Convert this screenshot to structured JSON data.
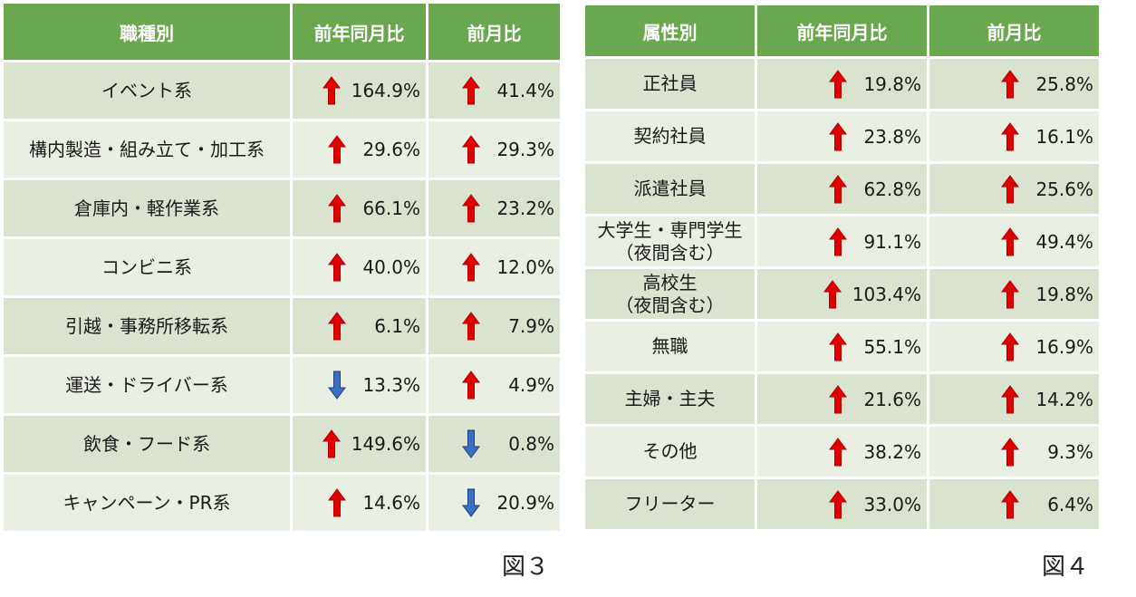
{
  "chart_data": [
    {
      "type": "table",
      "headers": [
        "職種別",
        "前年同月比",
        "前月比"
      ],
      "rows": [
        {
          "name": "イベント系",
          "yoy": {
            "dir": "up",
            "value": "164.9%"
          },
          "mom": {
            "dir": "up",
            "value": "41.4%"
          }
        },
        {
          "name": "構内製造・組み立て・加工系",
          "yoy": {
            "dir": "up",
            "value": "29.6%"
          },
          "mom": {
            "dir": "up",
            "value": "29.3%"
          }
        },
        {
          "name": "倉庫内・軽作業系",
          "yoy": {
            "dir": "up",
            "value": "66.1%"
          },
          "mom": {
            "dir": "up",
            "value": "23.2%"
          }
        },
        {
          "name": "コンビニ系",
          "yoy": {
            "dir": "up",
            "value": "40.0%"
          },
          "mom": {
            "dir": "up",
            "value": "12.0%"
          }
        },
        {
          "name": "引越・事務所移転系",
          "yoy": {
            "dir": "up",
            "value": "6.1%"
          },
          "mom": {
            "dir": "up",
            "value": "7.9%"
          }
        },
        {
          "name": "運送・ドライバー系",
          "yoy": {
            "dir": "down",
            "value": "13.3%"
          },
          "mom": {
            "dir": "up",
            "value": "4.9%"
          }
        },
        {
          "name": "飲食・フード系",
          "yoy": {
            "dir": "up",
            "value": "149.6%"
          },
          "mom": {
            "dir": "down",
            "value": "0.8%"
          }
        },
        {
          "name": "キャンペーン・PR系",
          "yoy": {
            "dir": "up",
            "value": "14.6%"
          },
          "mom": {
            "dir": "down",
            "value": "20.9%"
          }
        }
      ],
      "caption": "図３"
    },
    {
      "type": "table",
      "headers": [
        "属性別",
        "前年同月比",
        "前月比"
      ],
      "rows": [
        {
          "name": "正社員",
          "yoy": {
            "dir": "up",
            "value": "19.8%"
          },
          "mom": {
            "dir": "up",
            "value": "25.8%"
          }
        },
        {
          "name": "契約社員",
          "yoy": {
            "dir": "up",
            "value": "23.8%"
          },
          "mom": {
            "dir": "up",
            "value": "16.1%"
          }
        },
        {
          "name": "派遣社員",
          "yoy": {
            "dir": "up",
            "value": "62.8%"
          },
          "mom": {
            "dir": "up",
            "value": "25.6%"
          }
        },
        {
          "name": "大学生・専門学生\n（夜間含む）",
          "yoy": {
            "dir": "up",
            "value": "91.1%"
          },
          "mom": {
            "dir": "up",
            "value": "49.4%"
          }
        },
        {
          "name": "高校生\n（夜間含む）",
          "yoy": {
            "dir": "up",
            "value": "103.4%"
          },
          "mom": {
            "dir": "up",
            "value": "19.8%"
          }
        },
        {
          "name": "無職",
          "yoy": {
            "dir": "up",
            "value": "55.1%"
          },
          "mom": {
            "dir": "up",
            "value": "16.9%"
          }
        },
        {
          "name": "主婦・主夫",
          "yoy": {
            "dir": "up",
            "value": "21.6%"
          },
          "mom": {
            "dir": "up",
            "value": "14.2%"
          }
        },
        {
          "name": "その他",
          "yoy": {
            "dir": "up",
            "value": "38.2%"
          },
          "mom": {
            "dir": "up",
            "value": "9.3%"
          }
        },
        {
          "name": "フリーター",
          "yoy": {
            "dir": "up",
            "value": "33.0%"
          },
          "mom": {
            "dir": "up",
            "value": "6.4%"
          }
        }
      ],
      "caption": "図４"
    }
  ],
  "colors": {
    "header": "#6aa84f",
    "row_odd": "#d9e3cf",
    "row_even": "#e9efe3",
    "arrow_up": "#e00000",
    "arrow_down": "#3a6fc4"
  },
  "icons": {
    "up": "red-up-arrow-icon",
    "down": "blue-down-arrow-icon"
  }
}
